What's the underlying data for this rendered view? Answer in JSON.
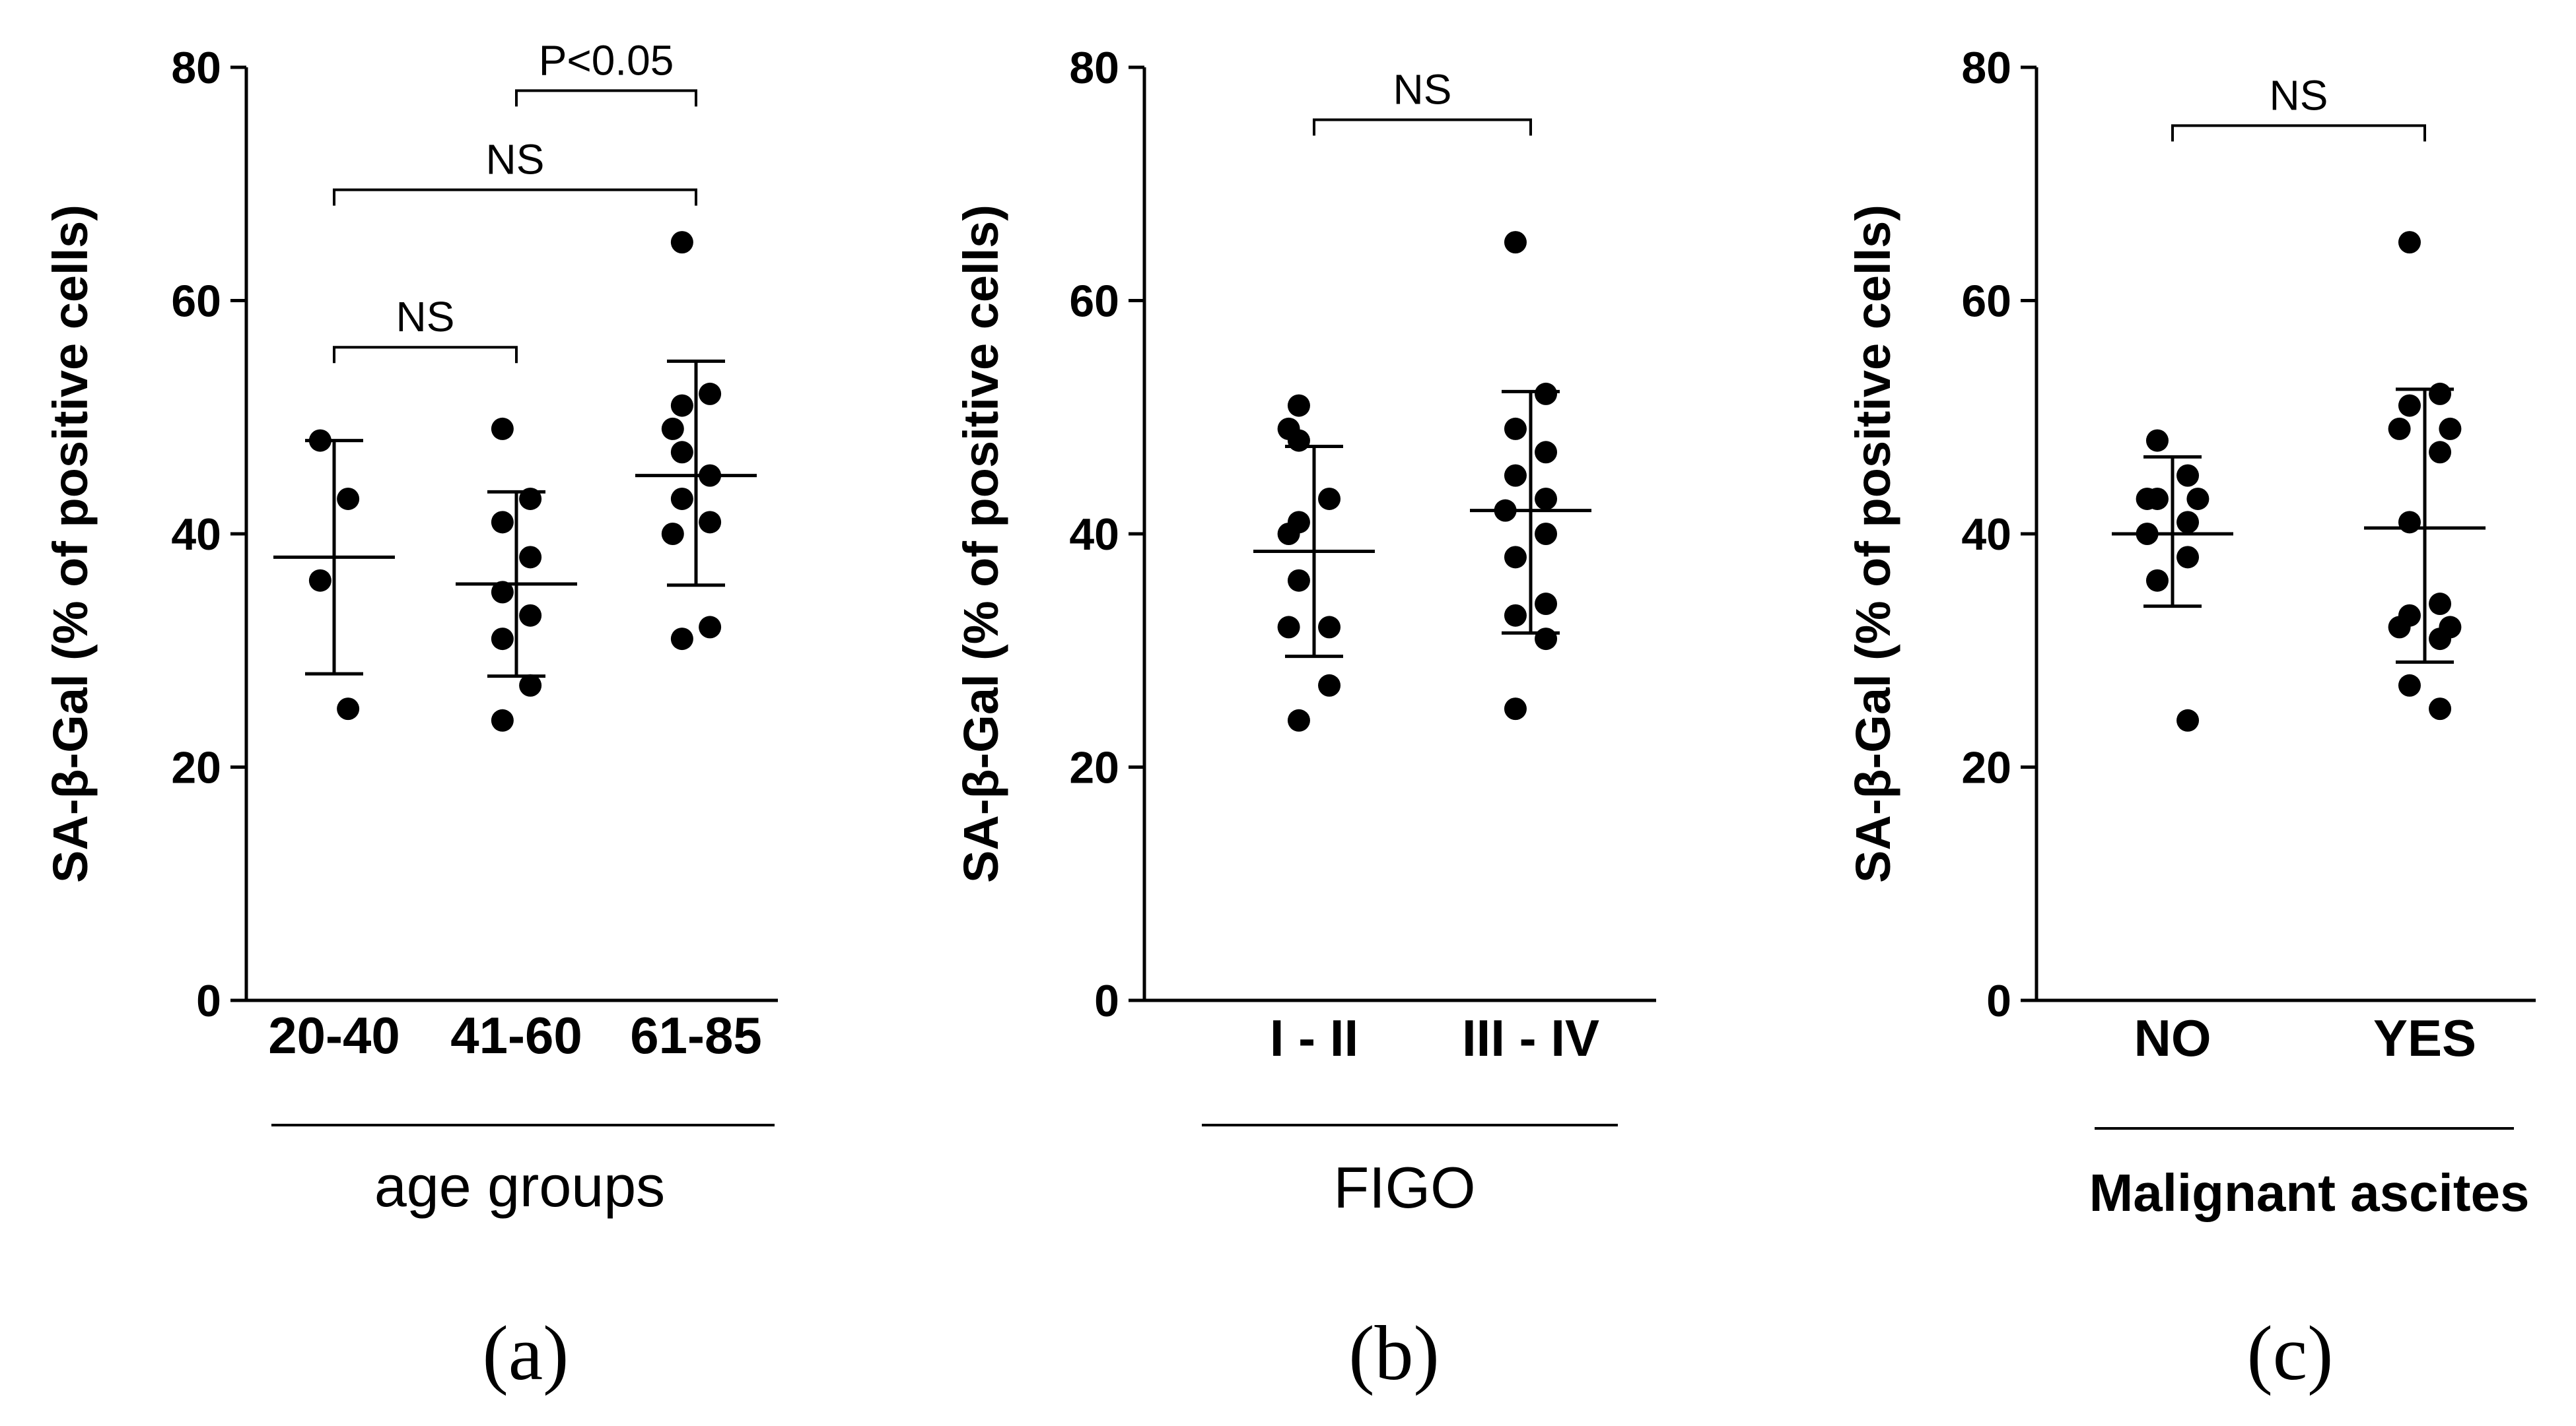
{
  "chart_data": [
    {
      "type": "scatter",
      "panel_label": "(a)",
      "ylabel": "SA-β-Gal (% of positive cells)",
      "xlabel": "age groups",
      "ylim": [
        0,
        80
      ],
      "yticks": [
        0,
        20,
        40,
        60,
        80
      ],
      "categories": [
        "20-40",
        "41-60",
        "61-85"
      ],
      "series": [
        {
          "name": "20-40",
          "points": [
            48,
            43,
            36,
            25
          ],
          "mean": 38,
          "sd_low": 28,
          "sd_high": 48
        },
        {
          "name": "41-60",
          "points": [
            49,
            43,
            41,
            38,
            35,
            33,
            31,
            27,
            24
          ],
          "mean": 35.7,
          "sd_low": 27.8,
          "sd_high": 43.6
        },
        {
          "name": "61-85",
          "points": [
            65,
            52,
            51,
            49,
            47,
            45,
            43,
            41,
            40,
            32,
            31
          ],
          "mean": 45,
          "sd_low": 35.6,
          "sd_high": 54.8
        }
      ],
      "annotations": [
        {
          "text": "P<0.05",
          "from": 1,
          "to": 2,
          "y": 78
        },
        {
          "text": "NS",
          "from": 0,
          "to": 2,
          "y": 69.5
        },
        {
          "text": "NS",
          "from": 0,
          "to": 1,
          "y": 56
        }
      ]
    },
    {
      "type": "scatter",
      "panel_label": "(b)",
      "ylabel": "SA-β-Gal (% of positive cells)",
      "xlabel": "FIGO",
      "ylim": [
        0,
        80
      ],
      "yticks": [
        0,
        20,
        40,
        60,
        80
      ],
      "categories": [
        "I - II",
        "III - IV"
      ],
      "series": [
        {
          "name": "I - II",
          "points": [
            51,
            49,
            48,
            43,
            41,
            40,
            36,
            32,
            32,
            27,
            24
          ],
          "mean": 38.5,
          "sd_low": 29.5,
          "sd_high": 47.5
        },
        {
          "name": "III - IV",
          "points": [
            65,
            52,
            49,
            47,
            45,
            43,
            42,
            40,
            38,
            34,
            33,
            31,
            25
          ],
          "mean": 42,
          "sd_low": 31.5,
          "sd_high": 52.2
        }
      ],
      "annotations": [
        {
          "text": "NS",
          "from": 0,
          "to": 1,
          "y": 75.5
        }
      ]
    },
    {
      "type": "scatter",
      "panel_label": "(c)",
      "ylabel": "SA-β-Gal (% of positive cells)",
      "xlabel": "Malignant ascites",
      "ylim": [
        0,
        80
      ],
      "yticks": [
        0,
        20,
        40,
        60,
        80
      ],
      "categories": [
        "NO",
        "YES"
      ],
      "series": [
        {
          "name": "NO",
          "points": [
            48,
            45,
            43,
            43,
            43,
            41,
            40,
            38,
            36,
            24
          ],
          "mean": 40,
          "sd_low": 33.8,
          "sd_high": 46.6
        },
        {
          "name": "YES",
          "points": [
            65,
            52,
            51,
            49,
            49,
            47,
            41,
            34,
            33,
            32,
            32,
            31,
            27,
            25
          ],
          "mean": 40.5,
          "sd_low": 29,
          "sd_high": 52.4
        }
      ],
      "annotations": [
        {
          "text": "NS",
          "from": 0,
          "to": 1,
          "y": 75
        }
      ]
    }
  ]
}
